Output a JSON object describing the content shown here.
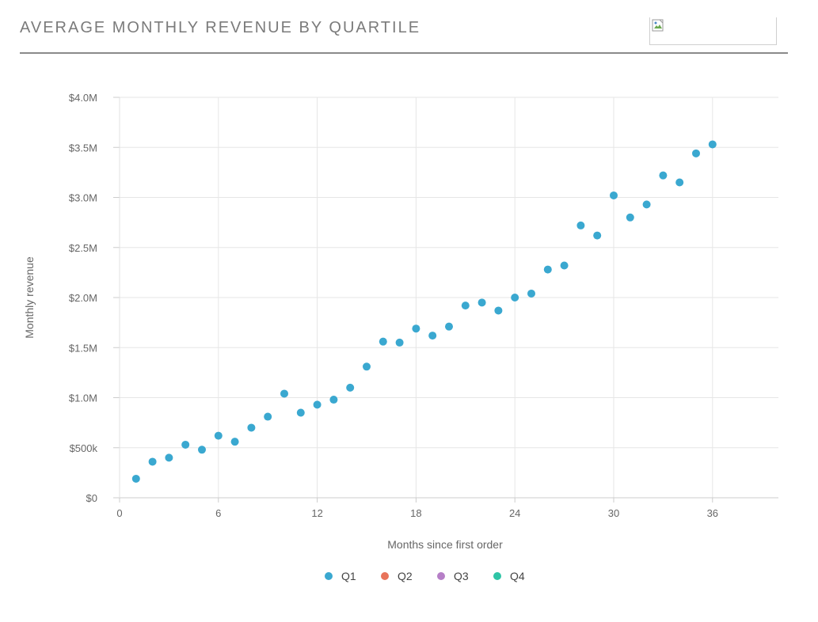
{
  "header": {
    "title": "AVERAGE MONTHLY REVENUE BY QUARTILE",
    "logo_icon": "broken-image-icon"
  },
  "chart_data": {
    "type": "scatter",
    "title": "",
    "xlabel": "Months since first order",
    "ylabel": "Monthly revenue",
    "xlim": [
      0,
      40
    ],
    "ylim": [
      0,
      4000000
    ],
    "x_ticks": [
      0,
      6,
      12,
      18,
      24,
      30,
      36
    ],
    "x_tick_labels": [
      "0",
      "6",
      "12",
      "18",
      "24",
      "30",
      "36"
    ],
    "y_ticks": [
      0,
      500000,
      1000000,
      1500000,
      2000000,
      2500000,
      3000000,
      3500000,
      4000000
    ],
    "y_tick_labels": [
      "$0",
      "$500k",
      "$1.0M",
      "$1.5M",
      "$2.0M",
      "$2.5M",
      "$3.0M",
      "$3.5M",
      "$4.0M"
    ],
    "grid": true,
    "legend_position": "bottom-center",
    "series": [
      {
        "name": "Q1",
        "color": "#3aa8d0",
        "x": [
          1,
          2,
          3,
          4,
          5,
          6,
          7,
          8,
          9,
          10,
          11,
          12,
          13,
          14,
          15,
          16,
          17,
          18,
          19,
          20,
          21,
          22,
          23,
          24,
          25,
          26,
          27,
          28,
          29,
          30,
          31,
          32,
          33,
          34,
          35,
          36
        ],
        "y": [
          190000,
          360000,
          400000,
          530000,
          480000,
          620000,
          560000,
          700000,
          810000,
          1040000,
          850000,
          930000,
          980000,
          1100000,
          1310000,
          1560000,
          1550000,
          1690000,
          1620000,
          1710000,
          1920000,
          1950000,
          1870000,
          2000000,
          2040000,
          2280000,
          2320000,
          2720000,
          2620000,
          3020000,
          2800000,
          2930000,
          3220000,
          3150000,
          3440000,
          3530000
        ]
      },
      {
        "name": "Q2",
        "color": "#e8735a",
        "x": [],
        "y": []
      },
      {
        "name": "Q3",
        "color": "#b67fc7",
        "x": [],
        "y": []
      },
      {
        "name": "Q4",
        "color": "#2ec4a6",
        "x": [],
        "y": []
      }
    ]
  }
}
